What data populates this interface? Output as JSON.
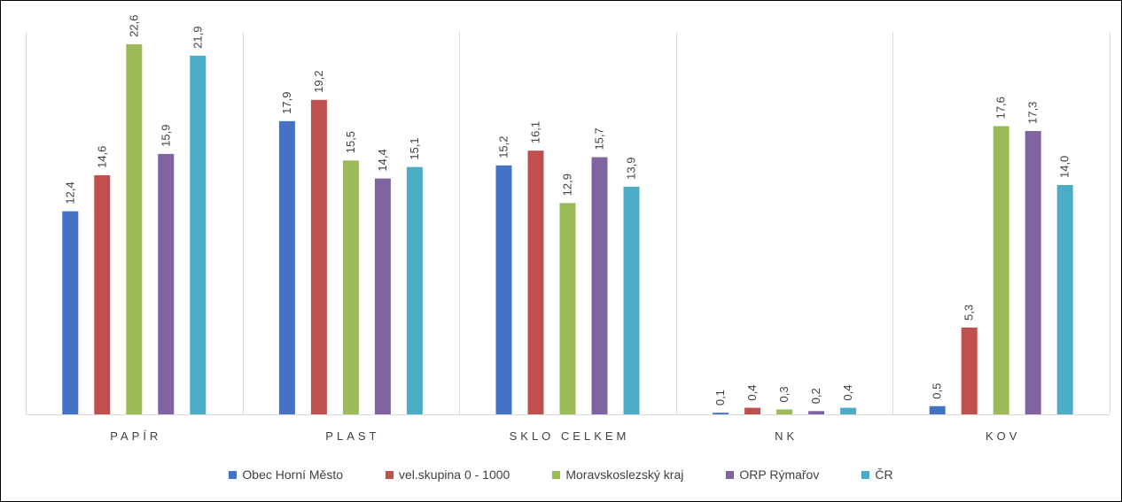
{
  "chart_data": {
    "type": "bar",
    "title": "",
    "xlabel": "",
    "ylabel": "",
    "ylim": [
      0,
      24
    ],
    "grid": false,
    "legend_position": "bottom",
    "categories": [
      "PAPÍR",
      "PLAST",
      "SKLO CELKEM",
      "NK",
      "KOV"
    ],
    "series": [
      {
        "name": "Obec Horní Město",
        "color": "#4472C4",
        "values": [
          12.4,
          17.9,
          15.2,
          0.1,
          0.5
        ],
        "labels": [
          "12,4",
          "17,9",
          "15,2",
          "0,1",
          "0,5"
        ]
      },
      {
        "name": "vel.skupina 0 - 1000",
        "color": "#C0504D",
        "values": [
          14.6,
          19.2,
          16.1,
          0.4,
          5.3
        ],
        "labels": [
          "14,6",
          "19,2",
          "16,1",
          "0,4",
          "5,3"
        ]
      },
      {
        "name": "Moravskoslezský kraj",
        "color": "#9BBB59",
        "values": [
          22.6,
          15.5,
          12.9,
          0.3,
          17.6
        ],
        "labels": [
          "22,6",
          "15,5",
          "12,9",
          "0,3",
          "17,6"
        ]
      },
      {
        "name": "ORP Rýmařov",
        "color": "#8064A2",
        "values": [
          15.9,
          14.4,
          15.7,
          0.2,
          17.3
        ],
        "labels": [
          "15,9",
          "14,4",
          "15,7",
          "0,2",
          "17,3"
        ]
      },
      {
        "name": "ČR",
        "color": "#4BACC6",
        "values": [
          21.9,
          15.1,
          13.9,
          0.4,
          14.0
        ],
        "labels": [
          "21,9",
          "15,1",
          "13,9",
          "0,4",
          "14,0"
        ]
      }
    ]
  }
}
